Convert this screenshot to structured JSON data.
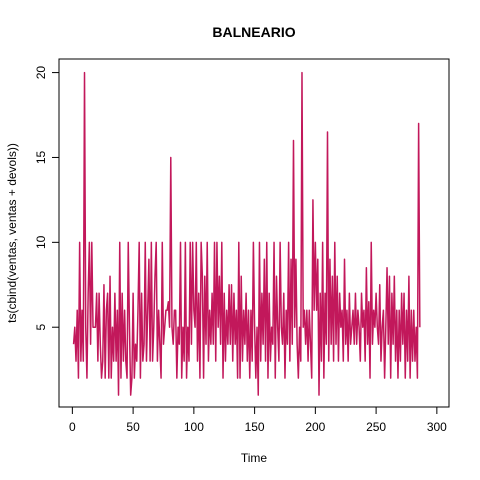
{
  "chart_data": {
    "type": "line",
    "title": "BALNEARIO",
    "xlabel": "Time",
    "ylabel": "ts(cbind(ventas, ventas + devols))",
    "xlim": [
      -11,
      310
    ],
    "ylim": [
      0.3,
      20.8
    ],
    "x_ticks": [
      0,
      50,
      100,
      150,
      200,
      250,
      300
    ],
    "y_ticks": [
      5,
      10,
      15,
      20
    ],
    "grid": false,
    "series": [
      {
        "color": "#c2185b",
        "x_start": 1,
        "values": [
          4,
          5,
          3,
          6,
          2,
          10,
          3,
          6,
          3,
          20,
          5,
          2,
          7,
          10,
          4,
          10,
          5,
          5,
          5,
          7,
          3,
          7,
          4,
          2,
          3,
          7.5,
          2,
          6,
          7,
          2,
          8,
          2,
          5,
          3,
          7,
          3,
          6,
          1,
          10,
          2,
          7,
          3,
          6,
          3,
          2,
          10,
          5,
          1,
          2,
          7,
          2,
          4,
          3,
          6,
          10,
          2,
          7,
          3,
          4,
          10,
          3,
          6,
          9,
          3,
          10,
          3,
          5,
          8,
          10,
          3,
          6,
          4,
          2,
          10,
          4,
          5,
          6,
          6,
          6.5,
          5,
          15,
          5,
          4,
          6,
          6,
          2,
          5,
          4,
          10,
          2,
          5,
          3,
          10,
          2,
          5,
          3,
          10,
          4,
          10,
          6,
          5,
          10,
          3,
          7,
          2,
          10,
          8,
          2,
          8,
          4,
          10,
          3,
          6,
          4,
          7,
          4,
          10,
          3,
          10,
          5,
          8,
          4,
          10,
          2,
          7,
          3,
          6,
          4,
          7.5,
          4,
          7.5,
          3,
          7,
          4,
          6,
          2,
          10,
          2,
          8,
          3,
          6,
          4,
          7,
          3,
          6,
          2,
          6,
          3,
          10,
          5,
          2,
          5,
          1,
          10,
          3,
          7,
          4,
          9,
          3,
          10,
          2,
          7,
          3,
          5,
          4,
          10,
          2,
          8,
          5,
          3,
          10,
          5,
          4,
          7,
          2,
          6,
          4,
          10,
          3,
          9,
          4,
          16,
          5,
          9,
          4,
          2,
          5,
          3,
          20,
          5,
          6,
          4,
          6,
          3,
          6,
          4,
          2,
          12.5,
          6,
          10,
          6,
          9,
          1,
          7,
          3,
          10,
          2,
          7,
          4,
          16.5,
          3,
          9,
          4,
          8,
          3,
          10,
          4,
          8,
          3,
          7,
          5,
          6,
          3,
          9,
          4,
          6,
          3,
          7,
          4,
          5,
          6,
          4,
          7,
          4,
          6,
          5,
          3,
          7,
          5,
          6,
          3,
          8.5,
          4,
          6.5,
          2,
          10,
          4,
          6,
          5,
          7,
          5,
          4,
          7.5,
          3,
          5,
          6,
          2,
          5,
          8.5,
          4,
          8,
          2,
          7,
          4,
          8,
          3,
          6,
          2,
          6,
          3,
          7,
          4,
          7,
          2,
          6,
          3,
          8,
          2,
          6,
          3,
          6,
          3,
          5,
          2,
          17,
          5
        ]
      }
    ]
  }
}
